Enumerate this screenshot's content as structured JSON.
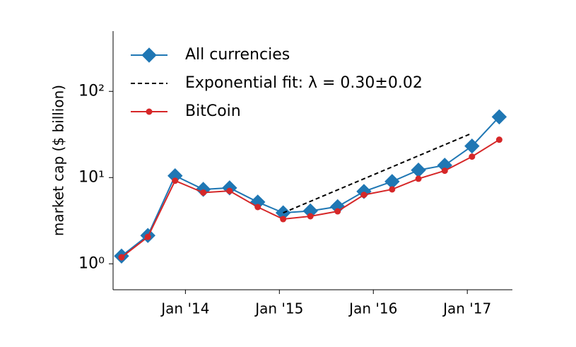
{
  "chart_data": {
    "type": "line",
    "y_label": "market cap ($ billion)",
    "x": [
      2013.32,
      2013.6,
      2013.89,
      2014.19,
      2014.47,
      2014.77,
      2015.04,
      2015.33,
      2015.62,
      2015.9,
      2016.2,
      2016.48,
      2016.76,
      2017.05,
      2017.34
    ],
    "series": [
      {
        "name": "All currencies",
        "color": "#1f77b4",
        "marker": "diamond",
        "values": [
          1.23,
          2.13,
          10.5,
          7.3,
          7.6,
          5.2,
          3.9,
          4.1,
          4.6,
          6.9,
          9.0,
          12.2,
          13.9,
          23.2,
          50.6
        ]
      },
      {
        "name": "Exponential fit: λ = 0.30±0.02",
        "color": "#000000",
        "dashed": true,
        "x": [
          2015.04,
          2017.05
        ],
        "values": [
          3.9,
          32.7
        ]
      },
      {
        "name": "BitCoin",
        "color": "#d62728",
        "marker": "circle",
        "values": [
          1.19,
          2.05,
          9.2,
          6.7,
          7.0,
          4.55,
          3.3,
          3.56,
          4.06,
          6.3,
          7.3,
          9.7,
          12.0,
          17.5,
          27.5
        ]
      }
    ],
    "xlim": [
      2013.23,
      2017.48
    ],
    "xticks": [
      {
        "value": 2014,
        "label": "Jan '14"
      },
      {
        "value": 2015,
        "label": "Jan '15"
      },
      {
        "value": 2016,
        "label": "Jan '16"
      },
      {
        "value": 2017,
        "label": "Jan '17"
      }
    ],
    "ylim": [
      0.5,
      500
    ],
    "y_log": true,
    "yticks": [
      {
        "value": 1,
        "label": "10⁰"
      },
      {
        "value": 10,
        "label": "10¹"
      },
      {
        "value": 100,
        "label": "10²"
      }
    ],
    "legend": "upper left"
  }
}
